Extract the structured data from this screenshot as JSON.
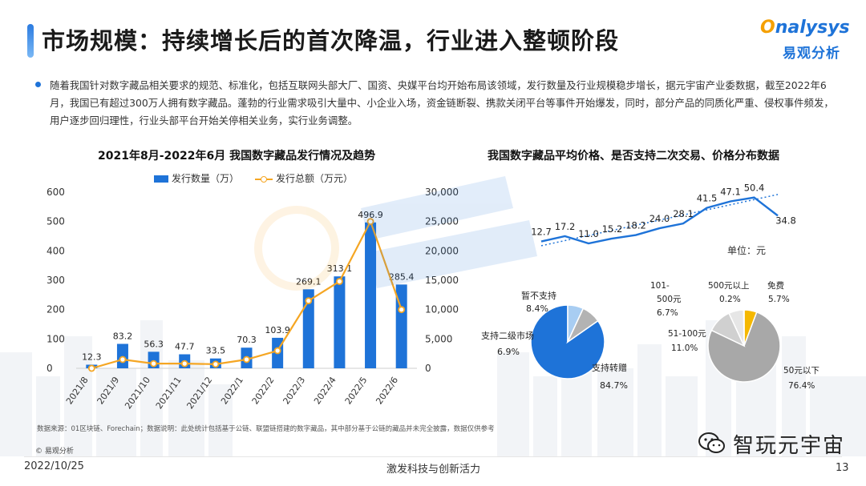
{
  "header": {
    "title": "市场规模：持续增长后的首次降温，行业进入整顿阶段",
    "logo_en_1": "O",
    "logo_en_2": "nalysys",
    "logo_cn": "易观分析"
  },
  "bullet": {
    "text": "随着我国针对数字藏品相关要求的规范、标准化，包括互联网头部大厂、国资、央媒平台均开始布局该领域，发行数量及行业规模稳步增长，据元宇宙产业委数据，截至2022年6月，我国已有超过300万人拥有数字藏品。蓬勃的行业需求吸引大量中、小企业入场，资金链断裂、携款关闭平台等事件开始爆发，同时，部分产品的同质化严重、侵权事件频发，用户逐步回归理性，行业头部平台开始关停相关业务，实行业务调整。"
  },
  "chart_data": [
    {
      "type": "bar",
      "title": "2021年8月-2022年6月 我国数字藏品发行情况及趋势",
      "categories": [
        "2021/8",
        "2021/9",
        "2021/10",
        "2021/11",
        "2021/12",
        "2022/1",
        "2022/2",
        "2022/3",
        "2022/4",
        "2022/5",
        "2022/6"
      ],
      "series": [
        {
          "name": "发行数量（万）",
          "type": "bar",
          "axis": "left",
          "color": "#1e73d8",
          "values": [
            12.3,
            83.2,
            56.3,
            47.7,
            33.5,
            70.3,
            103.9,
            269.1,
            313.1,
            496.9,
            285.4
          ]
        },
        {
          "name": "发行总额（万元）",
          "type": "line",
          "axis": "right",
          "color": "#f5a623",
          "values": [
            0,
            1500,
            800,
            800,
            700,
            1500,
            3000,
            11500,
            14800,
            25000,
            10000
          ]
        }
      ],
      "left_axis": {
        "min": 0,
        "max": 600,
        "ticks": [
          "0",
          "100",
          "200",
          "300",
          "400",
          "500",
          "600"
        ]
      },
      "right_axis": {
        "min": 0,
        "max": 30000,
        "ticks": [
          "0",
          "5,000",
          "10,000",
          "15,000",
          "20,000",
          "25,000",
          "30,000"
        ]
      },
      "bar_labels": [
        "12.3",
        "83.2",
        "56.3",
        "47.7",
        "33.5",
        "70.3",
        "103.9",
        "269.1",
        "313.1",
        "496.9",
        "285.4"
      ]
    },
    {
      "type": "line",
      "title": "我国数字藏品平均价格、是否支持二次交易、价格分布数据",
      "unit": "单位：元",
      "values": [
        12.7,
        17.2,
        11.0,
        15.2,
        18.2,
        24.0,
        28.1,
        41.5,
        47.1,
        50.4,
        34.8
      ],
      "labels": [
        "12.7",
        "17.2",
        "11.0",
        "15.2",
        "18.2",
        "24.0",
        "28.1",
        "41.5",
        "47.1",
        "50.4",
        "34.8"
      ],
      "color": "#1e73d8",
      "trendline": true
    },
    {
      "type": "pie",
      "slices": [
        {
          "name": "支持转赠",
          "value": 84.7,
          "label": "84.7%",
          "color": "#1e73d8"
        },
        {
          "name": "支持二级市场",
          "value": 6.9,
          "label": "6.9%",
          "color": "#a8cdf2"
        },
        {
          "name": "暂不支持",
          "value": 8.4,
          "label": "8.4%",
          "color": "#b3b3b3"
        }
      ]
    },
    {
      "type": "pie",
      "slices": [
        {
          "name": "50元以下",
          "value": 76.4,
          "label": "76.4%",
          "color": "#a8a8a8"
        },
        {
          "name": "51-100元",
          "value": 11.0,
          "label": "11.0%",
          "color": "#d0d0d0"
        },
        {
          "name": "101-500元",
          "value": 6.7,
          "label": "6.7%",
          "color": "#e6e6e6"
        },
        {
          "name": "500元以上",
          "value": 0.2,
          "label": "0.2%",
          "color": "#1e73d8"
        },
        {
          "name": "免费",
          "value": 5.7,
          "label": "5.7%",
          "color": "#f5b800"
        }
      ]
    }
  ],
  "footer": {
    "source": "数据来源：01区块链、Forechain；数据说明：此处统计包括基于公链、联盟链搭建的数字藏品，其中部分基于公链的藏品并未完全披露，数据仅供参考",
    "copyright": "© 易观分析",
    "date": "2022/10/25",
    "slogan": "激发科技与创新活力",
    "page": "13",
    "wechat_name": "智玩元宇宙"
  },
  "colors": {
    "accent": "#1e73d8",
    "orange": "#f5a623",
    "gray": "#a8a8a8"
  }
}
